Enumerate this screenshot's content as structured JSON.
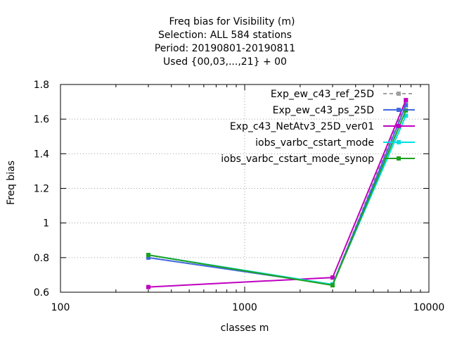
{
  "chart_data": {
    "type": "line",
    "title_lines": [
      "Freq bias  for Visibility (m)",
      "Selection: ALL    584 stations",
      "Period: 20190801-20190811",
      "Used {00,03,...,21} + 00"
    ],
    "xlabel": "classes m",
    "ylabel": "Freq bias",
    "x_scale": "log",
    "xlim": [
      100,
      10000
    ],
    "ylim": [
      0.6,
      1.8
    ],
    "x_ticks": [
      100,
      1000,
      10000
    ],
    "x_tick_labels": [
      "100",
      "1000",
      "10000"
    ],
    "y_ticks": [
      0.6,
      0.8,
      1,
      1.2,
      1.4,
      1.6,
      1.8
    ],
    "y_tick_labels": [
      "0.6",
      "0.8",
      "1",
      "1.2",
      "1.4",
      "1.6",
      "1.8"
    ],
    "grid": true,
    "legend_position": "top-right",
    "series": [
      {
        "name": "Exp_ew_c43_ref_25D",
        "color": "#a0a0a0",
        "dashed": true,
        "x": [
          300,
          3000,
          7500
        ],
        "y": [
          0.8,
          0.645,
          1.7
        ]
      },
      {
        "name": "Exp_ew_c43_ps_25D",
        "color": "#4169e1",
        "dashed": false,
        "x": [
          300,
          3000,
          7500
        ],
        "y": [
          0.8,
          0.645,
          1.68
        ]
      },
      {
        "name": "Exp_c43_NetAtv3_25D_ver01",
        "color": "#c000c0",
        "dashed": false,
        "x": [
          300,
          3000,
          7500
        ],
        "y": [
          0.63,
          0.685,
          1.71
        ]
      },
      {
        "name": "iobs_varbc_cstart_mode",
        "color": "#00e0e0",
        "dashed": false,
        "x": [
          300,
          3000,
          7500
        ],
        "y": [
          0.815,
          0.645,
          1.62
        ]
      },
      {
        "name": "iobs_varbc_cstart_mode_synop",
        "color": "#20a020",
        "dashed": false,
        "x": [
          300,
          3000,
          7500
        ],
        "y": [
          0.815,
          0.64,
          1.65
        ]
      }
    ]
  }
}
